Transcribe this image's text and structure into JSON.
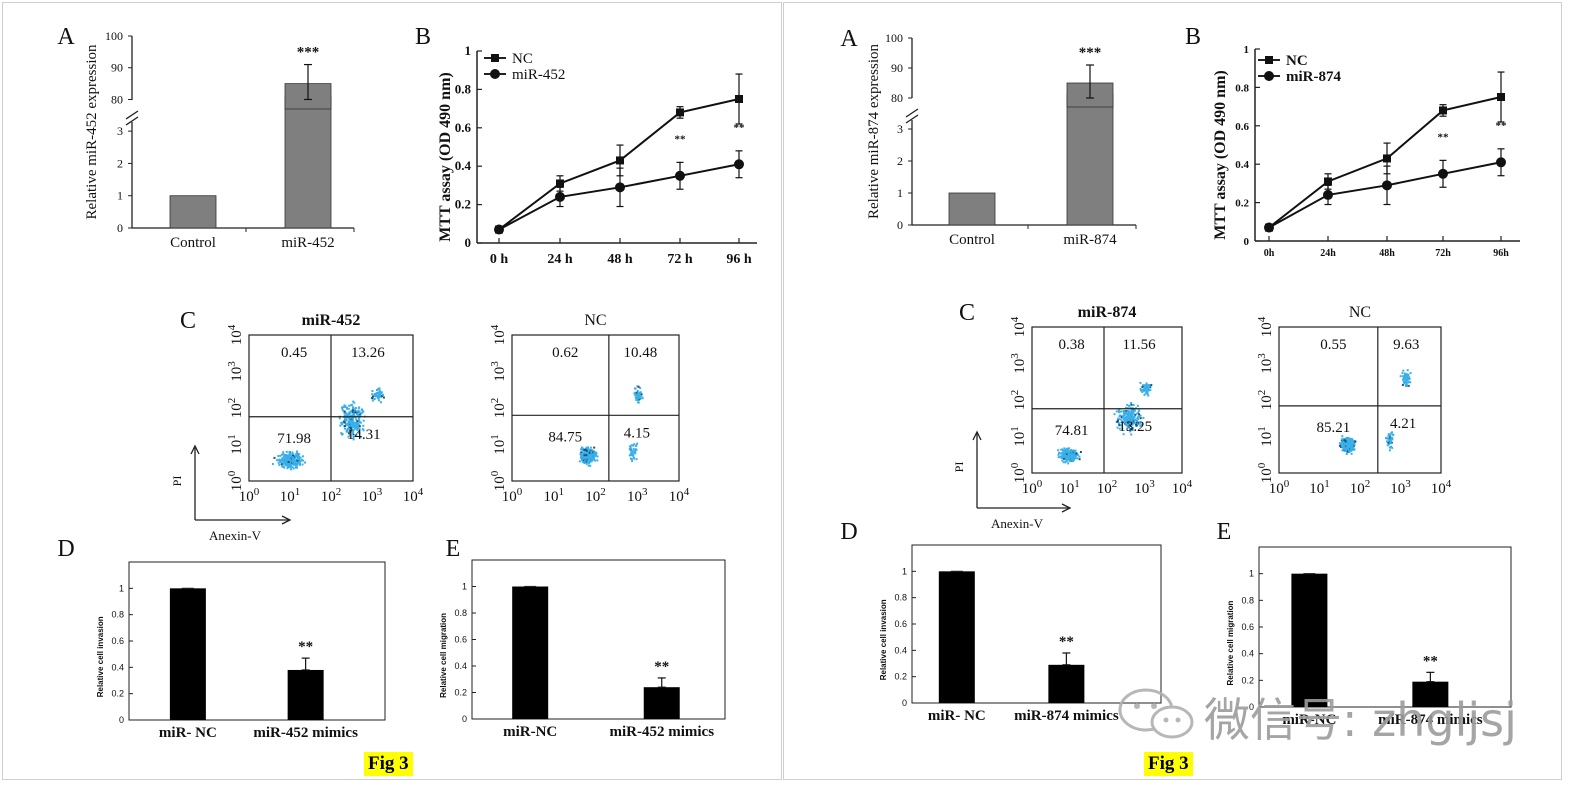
{
  "figure_tag": "Fig 3",
  "watermark": {
    "text": "微信号: zhgljsj"
  },
  "chart_data": [
    {
      "type": "bar",
      "panel": "left",
      "letter": "A",
      "categories": [
        "Control",
        "miR-452"
      ],
      "values": [
        1,
        85
      ],
      "error_high": [
        null,
        91
      ],
      "error_low": [
        null,
        80
      ],
      "significance": [
        "",
        "***"
      ],
      "ylabel": "Relative miR-452 expression",
      "yticks_lower": [
        "0",
        "1",
        "2",
        "3"
      ],
      "yticks_upper": [
        "80",
        "90",
        "100"
      ],
      "axis_break": true
    },
    {
      "type": "line",
      "panel": "left",
      "letter": "B",
      "x": [
        "0 h",
        "24 h",
        "48 h",
        "72 h",
        "96 h"
      ],
      "series": [
        {
          "name": "NC",
          "marker": "square",
          "values": [
            0.07,
            0.31,
            0.43,
            0.68,
            0.75
          ],
          "errors": [
            0.01,
            0.04,
            0.08,
            0.03,
            0.13
          ]
        },
        {
          "name": "miR-452",
          "marker": "circle",
          "values": [
            0.07,
            0.24,
            0.29,
            0.35,
            0.41
          ],
          "errors": [
            0.01,
            0.05,
            0.1,
            0.07,
            0.07
          ]
        }
      ],
      "significance": [
        "",
        "",
        "",
        "**",
        "**"
      ],
      "ylabel": "MTT assay (OD 490 nm)",
      "ylim": [
        0,
        1
      ],
      "yticks": [
        "0",
        "0.2",
        "0.4",
        "0.6",
        "0.8",
        "1"
      ]
    },
    {
      "type": "scatter",
      "panel": "left",
      "letter": "C",
      "plots": [
        {
          "title": "miR-452",
          "quadrants": [
            "0.45",
            "13.26",
            "71.98",
            "14.31"
          ]
        },
        {
          "title": "NC",
          "quadrants": [
            "0.62",
            "10.48",
            "84.75",
            "4.15"
          ]
        }
      ],
      "xlabel": "Anexin-V",
      "ylabel": "PI",
      "tick_base": "10",
      "tick_exponents": [
        "0",
        "1",
        "2",
        "3",
        "4"
      ]
    },
    {
      "type": "bar",
      "panel": "left",
      "letter": "D",
      "categories": [
        "miR- NC",
        "miR-452 mimics"
      ],
      "values": [
        1,
        0.38
      ],
      "errors": [
        0,
        0.09
      ],
      "significance": [
        "",
        "**"
      ],
      "ylabel": "Relative cell invasion",
      "ylim": [
        0,
        1.2
      ],
      "yticks": [
        "0",
        "0.2",
        "0.4",
        "0.6",
        "0.8",
        "1"
      ]
    },
    {
      "type": "bar",
      "panel": "left",
      "letter": "E",
      "categories": [
        "miR-NC",
        "miR-452 mimics"
      ],
      "values": [
        1,
        0.24
      ],
      "errors": [
        0,
        0.07
      ],
      "significance": [
        "",
        "**"
      ],
      "ylabel": "Relative cell migration",
      "ylim": [
        0,
        1.2
      ],
      "yticks": [
        "0",
        "0.2",
        "0.4",
        "0.6",
        "0.8",
        "1"
      ]
    },
    {
      "type": "bar",
      "panel": "right",
      "letter": "A",
      "categories": [
        "Control",
        "miR-874"
      ],
      "values": [
        1,
        85
      ],
      "error_high": [
        null,
        91
      ],
      "error_low": [
        null,
        80
      ],
      "significance": [
        "",
        "***"
      ],
      "ylabel": "Relative miR-874 expression",
      "yticks_lower": [
        "0",
        "1",
        "2",
        "3"
      ],
      "yticks_upper": [
        "80",
        "90",
        "100"
      ],
      "axis_break": true
    },
    {
      "type": "line",
      "panel": "right",
      "letter": "B",
      "x": [
        "0h",
        "24h",
        "48h",
        "72h",
        "96h"
      ],
      "series": [
        {
          "name": "NC",
          "marker": "square",
          "values": [
            0.07,
            0.31,
            0.43,
            0.68,
            0.75
          ],
          "errors": [
            0.01,
            0.04,
            0.08,
            0.03,
            0.13
          ]
        },
        {
          "name": "miR-874",
          "marker": "circle",
          "values": [
            0.07,
            0.24,
            0.29,
            0.35,
            0.41
          ],
          "errors": [
            0.01,
            0.05,
            0.1,
            0.07,
            0.07
          ]
        }
      ],
      "significance": [
        "",
        "",
        "",
        "**",
        "**"
      ],
      "ylabel": "MTT assay (OD 490 nm)",
      "ylim": [
        0,
        1
      ],
      "yticks": [
        "0",
        "0.2",
        "0.4",
        "0.6",
        "0.8",
        "1"
      ]
    },
    {
      "type": "scatter",
      "panel": "right",
      "letter": "C",
      "plots": [
        {
          "title": "miR-874",
          "quadrants": [
            "0.38",
            "11.56",
            "74.81",
            "13.25"
          ]
        },
        {
          "title": "NC",
          "quadrants": [
            "0.55",
            "9.63",
            "85.21",
            "4.21"
          ]
        }
      ],
      "xlabel": "Anexin-V",
      "ylabel": "PI",
      "tick_base": "10",
      "tick_exponents": [
        "0",
        "1",
        "2",
        "3",
        "4"
      ]
    },
    {
      "type": "bar",
      "panel": "right",
      "letter": "D",
      "categories": [
        "miR- NC",
        "miR-874 mimics"
      ],
      "values": [
        1,
        0.29
      ],
      "errors": [
        0,
        0.09
      ],
      "significance": [
        "",
        "**"
      ],
      "ylabel": "Relative cell invasion",
      "ylim": [
        0,
        1.2
      ],
      "yticks": [
        "0",
        "0.2",
        "0.4",
        "0.6",
        "0.8",
        "1"
      ]
    },
    {
      "type": "bar",
      "panel": "right",
      "letter": "E",
      "categories": [
        "miR-NC",
        "miR-874 mimics"
      ],
      "values": [
        1,
        0.19
      ],
      "errors": [
        0,
        0.07
      ],
      "significance": [
        "",
        "**"
      ],
      "ylabel": "Relative cell migration",
      "ylim": [
        0,
        1.2
      ],
      "yticks": [
        "0",
        "0.2",
        "0.4",
        "0.6",
        "0.8",
        "1"
      ]
    }
  ]
}
